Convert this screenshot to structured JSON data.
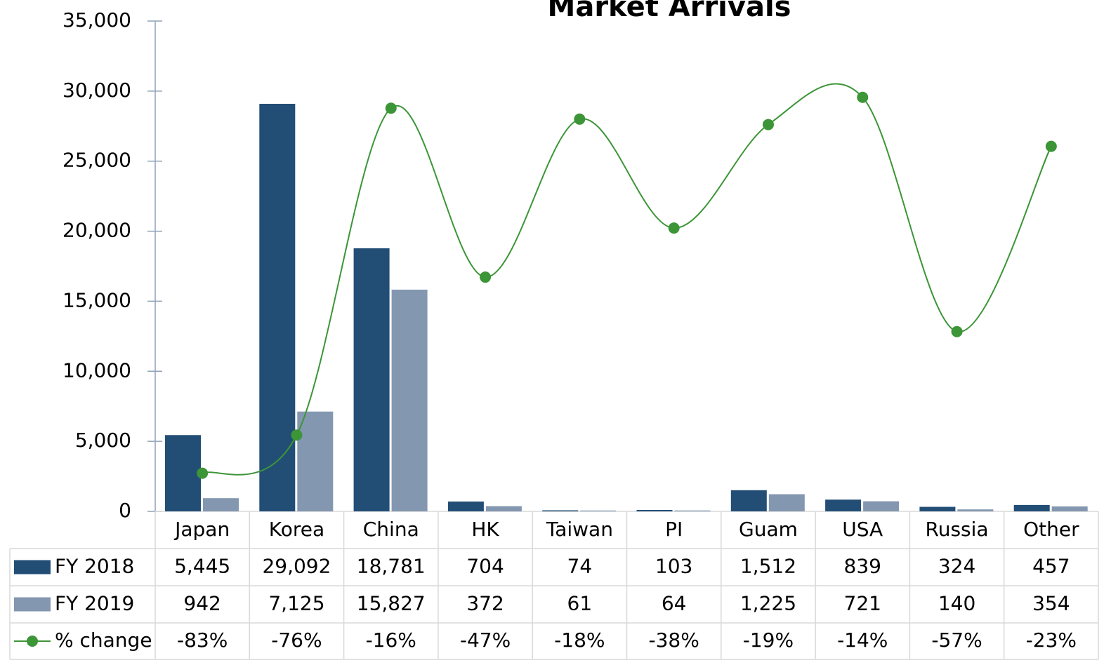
{
  "chart_data": {
    "type": "bar",
    "title": "Market Arrivals",
    "categories": [
      "Japan",
      "Korea",
      "China",
      "HK",
      "Taiwan",
      "PI",
      "Guam",
      "USA",
      "Russia",
      "Other"
    ],
    "series": [
      {
        "name": "FY 2018",
        "color": "#224e76",
        "type": "bar",
        "values": [
          5445,
          29092,
          18781,
          704,
          74,
          103,
          1512,
          839,
          324,
          457
        ],
        "value_labels": [
          "5,445",
          "29,092",
          "18,781",
          "704",
          "74",
          "103",
          "1,512",
          "839",
          "324",
          "457"
        ]
      },
      {
        "name": "FY 2019",
        "color": "#8497b0",
        "type": "bar",
        "values": [
          942,
          7125,
          15827,
          372,
          61,
          64,
          1225,
          721,
          140,
          354
        ],
        "value_labels": [
          "942",
          "7,125",
          "15,827",
          "372",
          "61",
          "64",
          "1,225",
          "721",
          "140",
          "354"
        ]
      },
      {
        "name": "% change",
        "color": "#3c9537",
        "type": "line",
        "axis": "y2",
        "values": [
          -83,
          -76,
          -16,
          -47,
          -18,
          -38,
          -19,
          -14,
          -57,
          -23
        ],
        "value_labels": [
          "-83%",
          "-76%",
          "-16%",
          "-47%",
          "-18%",
          "-38%",
          "-19%",
          "-14%",
          "-57%",
          "-23%"
        ]
      }
    ],
    "ylim": [
      0,
      35000
    ],
    "yticks": [
      0,
      {
        "value": 5000,
        "label": "5,000"
      },
      {
        "value": 10000,
        "label": "10,000"
      },
      {
        "value": 15000,
        "label": "15,000"
      },
      {
        "value": 20000,
        "label": "20,000"
      },
      {
        "value": 25000,
        "label": "25,000"
      },
      {
        "value": 30000,
        "label": "30,000"
      },
      {
        "value": 35000,
        "label": "35,000"
      }
    ],
    "y2lim": [
      -90,
      0
    ]
  }
}
